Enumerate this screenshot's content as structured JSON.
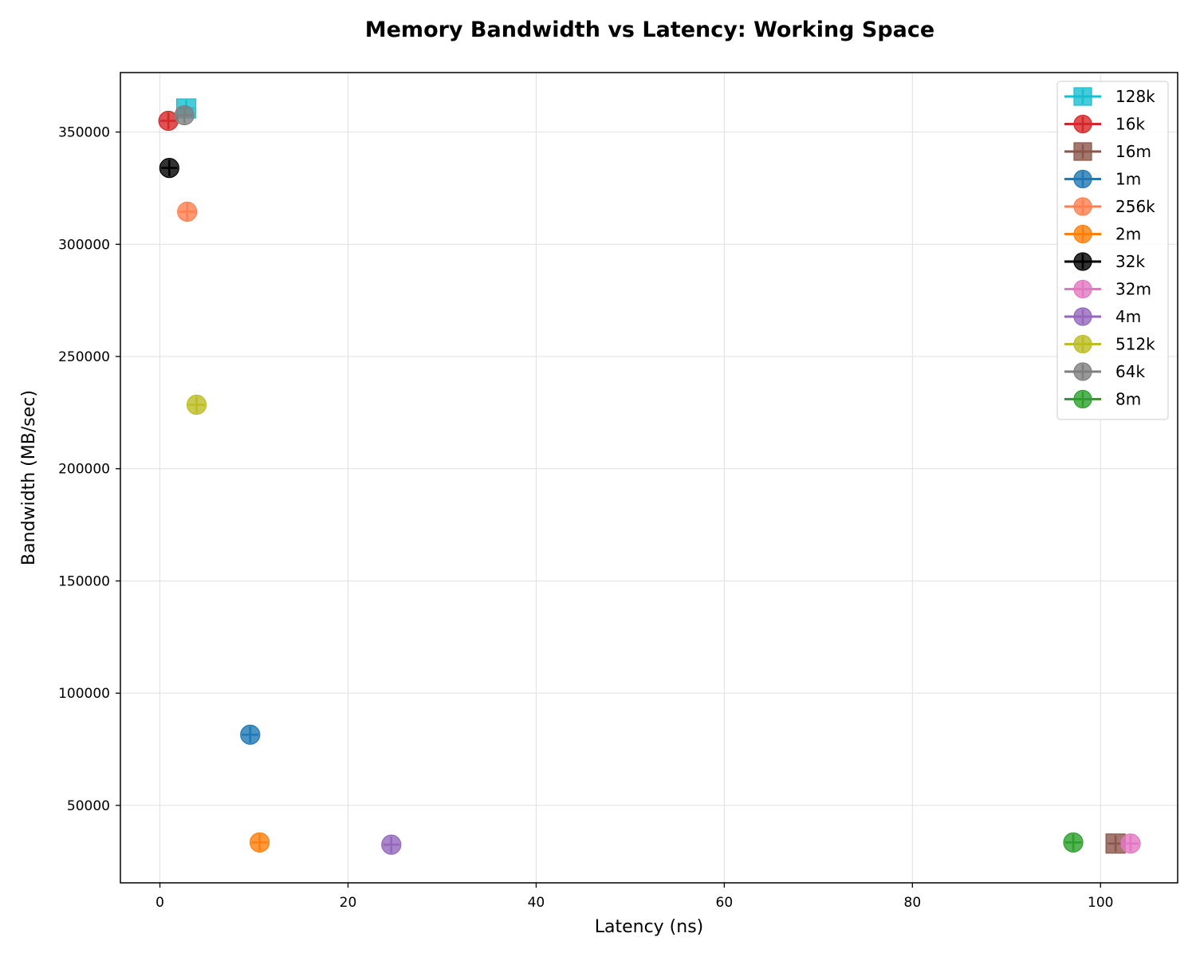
{
  "chart_data": {
    "type": "scatter",
    "title": "Memory Bandwidth vs Latency: Working Space",
    "xlabel": "Latency (ns)",
    "ylabel": "Bandwidth (MB/sec)",
    "xlim": [
      -4.2,
      108.2
    ],
    "ylim": [
      15500,
      376500
    ],
    "xticks": [
      0,
      20,
      40,
      60,
      80,
      100
    ],
    "yticks": [
      50000,
      100000,
      150000,
      200000,
      250000,
      300000,
      350000
    ],
    "grid": true,
    "legend_position": "top-right",
    "series": [
      {
        "name": "128k",
        "color": "#17becf",
        "marker": "square",
        "points": [
          {
            "x": 2.8,
            "y": 360500
          }
        ]
      },
      {
        "name": "16k",
        "color": "#d62728",
        "marker": "circle",
        "points": [
          {
            "x": 0.9,
            "y": 355000
          }
        ]
      },
      {
        "name": "16m",
        "color": "#8c564b",
        "marker": "square",
        "points": [
          {
            "x": 101.6,
            "y": 33000
          }
        ]
      },
      {
        "name": "1m",
        "color": "#1f77b4",
        "marker": "circle",
        "points": [
          {
            "x": 9.6,
            "y": 81500
          }
        ]
      },
      {
        "name": "256k",
        "color": "#ff7f50",
        "marker": "circle",
        "points": [
          {
            "x": 2.9,
            "y": 314500
          }
        ]
      },
      {
        "name": "2m",
        "color": "#ff7f0e",
        "marker": "circle",
        "points": [
          {
            "x": 10.6,
            "y": 33500
          }
        ]
      },
      {
        "name": "32k",
        "color": "#000000",
        "marker": "circle",
        "points": [
          {
            "x": 1.0,
            "y": 334000
          }
        ]
      },
      {
        "name": "32m",
        "color": "#e377c2",
        "marker": "circle",
        "points": [
          {
            "x": 103.2,
            "y": 33000
          }
        ]
      },
      {
        "name": "4m",
        "color": "#9467bd",
        "marker": "circle",
        "points": [
          {
            "x": 24.6,
            "y": 32500
          }
        ]
      },
      {
        "name": "512k",
        "color": "#bcbd22",
        "marker": "circle",
        "points": [
          {
            "x": 3.9,
            "y": 228500
          }
        ]
      },
      {
        "name": "64k",
        "color": "#7f7f7f",
        "marker": "circle",
        "points": [
          {
            "x": 2.6,
            "y": 357500
          }
        ]
      },
      {
        "name": "8m",
        "color": "#2ca02c",
        "marker": "circle",
        "points": [
          {
            "x": 97.1,
            "y": 33500
          }
        ]
      }
    ]
  }
}
